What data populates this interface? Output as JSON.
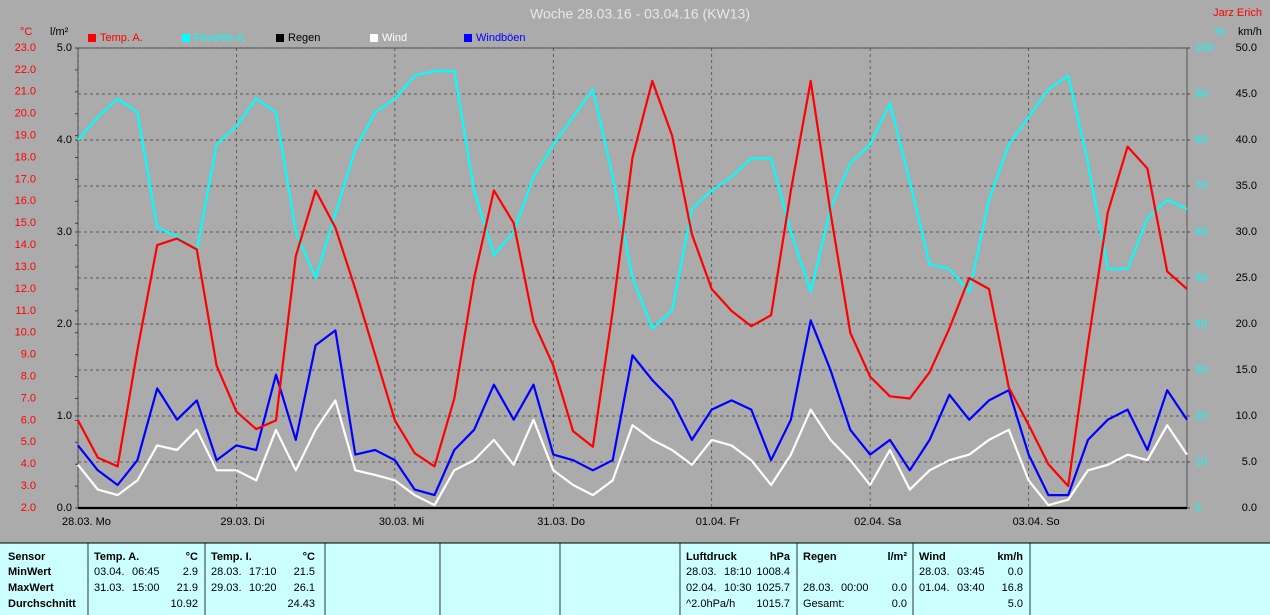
{
  "chart_data": {
    "type": "line",
    "title": "Woche 28.03.16 - 03.04.16 (KW13)",
    "author": "Jarz Erich",
    "ylabel": "°C",
    "y3label": "l/m²",
    "y4label": "%",
    "y2label": "km/h",
    "xlim": [
      0,
      7
    ],
    "xticks": [
      {
        "value": 0,
        "label": "28.03.  Mo"
      },
      {
        "value": 1,
        "label": "29.03.  Di"
      },
      {
        "value": 2,
        "label": "30.03.  Mi"
      },
      {
        "value": 3,
        "label": "31.03.  Do"
      },
      {
        "value": 4,
        "label": "01.04.  Fr"
      },
      {
        "value": 5,
        "label": "02.04.  Sa"
      },
      {
        "value": 6,
        "label": "03.04.  So"
      }
    ],
    "ylim": [
      2,
      23
    ],
    "yticks": [
      {
        "value": 2,
        "label": "2.0"
      },
      {
        "value": 3,
        "label": "3.0"
      },
      {
        "value": 4,
        "label": "4.0"
      },
      {
        "value": 5,
        "label": "5.0"
      },
      {
        "value": 6,
        "label": "6.0"
      },
      {
        "value": 7,
        "label": "7.0"
      },
      {
        "value": 8,
        "label": "8.0"
      },
      {
        "value": 9,
        "label": "9.0"
      },
      {
        "value": 10,
        "label": "10.0"
      },
      {
        "value": 11,
        "label": "11.0"
      },
      {
        "value": 12,
        "label": "12.0"
      },
      {
        "value": 13,
        "label": "13.0"
      },
      {
        "value": 14,
        "label": "14.0"
      },
      {
        "value": 15,
        "label": "15.0"
      },
      {
        "value": 16,
        "label": "16.0"
      },
      {
        "value": 17,
        "label": "17.0"
      },
      {
        "value": 18,
        "label": "18.0"
      },
      {
        "value": 19,
        "label": "19.0"
      },
      {
        "value": 20,
        "label": "20.0"
      },
      {
        "value": 21,
        "label": "21.0"
      },
      {
        "value": 22,
        "label": "22.0"
      },
      {
        "value": 23,
        "label": "23.0"
      }
    ],
    "y3lim": [
      0,
      5
    ],
    "y3ticks": [
      {
        "value": 0,
        "label": "0.0"
      },
      {
        "value": 1,
        "label": "1.0"
      },
      {
        "value": 2,
        "label": "2.0"
      },
      {
        "value": 3,
        "label": "3.0"
      },
      {
        "value": 4,
        "label": "4.0"
      },
      {
        "value": 5,
        "label": "5.0"
      }
    ],
    "y4lim": [
      0,
      100
    ],
    "y4ticks": [
      0,
      10,
      20,
      30,
      40,
      50,
      60,
      70,
      80,
      90,
      100
    ],
    "y2lim": [
      0,
      50
    ],
    "y2ticks": [
      {
        "value": 0,
        "label": "0.0"
      },
      {
        "value": 5,
        "label": "5.0"
      },
      {
        "value": 10,
        "label": "10.0"
      },
      {
        "value": 15,
        "label": "15.0"
      },
      {
        "value": 20,
        "label": "20.0"
      },
      {
        "value": 25,
        "label": "25.0"
      },
      {
        "value": 30,
        "label": "30.0"
      },
      {
        "value": 35,
        "label": "35.0"
      },
      {
        "value": 40,
        "label": "40.0"
      },
      {
        "value": 45,
        "label": "45.0"
      },
      {
        "value": 50,
        "label": "50.0"
      }
    ],
    "grid": true,
    "x": [
      0,
      0.125,
      0.25,
      0.375,
      0.5,
      0.625,
      0.75,
      0.875,
      1,
      1.125,
      1.25,
      1.375,
      1.5,
      1.625,
      1.75,
      1.875,
      2,
      2.125,
      2.25,
      2.375,
      2.5,
      2.625,
      2.75,
      2.875,
      3,
      3.125,
      3.25,
      3.375,
      3.5,
      3.625,
      3.75,
      3.875,
      4,
      4.125,
      4.25,
      4.375,
      4.5,
      4.625,
      4.75,
      4.875,
      5,
      5.125,
      5.25,
      5.375,
      5.5,
      5.625,
      5.75,
      5.875,
      6,
      6.125,
      6.25,
      6.375,
      6.5,
      6.625,
      6.75,
      6.875,
      7
    ],
    "series": [
      {
        "name": "Temp. A.",
        "color": "#ff0000",
        "axis": "y",
        "values": [
          6.0,
          4.3,
          3.9,
          9.2,
          14.0,
          14.3,
          13.8,
          8.5,
          6.4,
          5.6,
          6.0,
          13.5,
          16.5,
          14.8,
          12.0,
          9.0,
          6.0,
          4.5,
          3.9,
          7.0,
          12.5,
          16.5,
          15.0,
          10.5,
          8.5,
          5.5,
          4.8,
          11.0,
          18.0,
          21.5,
          19.0,
          14.5,
          12.0,
          11.0,
          10.3,
          10.8,
          16.5,
          21.5,
          15.5,
          10.0,
          8.0,
          7.1,
          7.0,
          8.2,
          10.2,
          12.5,
          12.0,
          7.5,
          5.8,
          4.0,
          3.0,
          9.5,
          15.5,
          18.5,
          17.5,
          12.8,
          12.0
        ]
      },
      {
        "name": "Feuchte A.",
        "color": "#00ffff",
        "axis": "y4",
        "values": [
          80,
          85,
          89,
          86,
          61,
          59,
          56,
          79,
          83,
          89,
          86,
          60,
          50,
          64,
          78,
          86,
          89,
          94,
          95,
          95,
          69,
          55,
          60,
          72,
          79,
          85,
          91,
          72,
          50,
          39,
          43,
          65,
          69,
          72,
          76,
          76,
          60,
          47,
          65,
          75,
          79,
          88,
          71,
          53,
          52,
          47,
          67,
          79,
          85,
          91,
          94,
          75,
          52,
          52,
          63,
          67,
          65
        ]
      },
      {
        "name": "Regen",
        "color": "#000000",
        "axis": "y3",
        "values": [
          0,
          0,
          0,
          0,
          0,
          0,
          0,
          0,
          0,
          0,
          0,
          0,
          0,
          0,
          0,
          0,
          0,
          0,
          0,
          0,
          0,
          0,
          0,
          0,
          0,
          0,
          0,
          0,
          0,
          0,
          0,
          0,
          0,
          0,
          0,
          0,
          0,
          0,
          0,
          0,
          0,
          0,
          0,
          0,
          0,
          0,
          0,
          0,
          0,
          0,
          0,
          0,
          0,
          0,
          0,
          0,
          0
        ]
      },
      {
        "name": "Wind",
        "color": "#ffffff",
        "axis": "y2",
        "values": [
          4.7,
          2.0,
          1.4,
          3.0,
          6.8,
          6.3,
          8.5,
          4.1,
          4.1,
          3.0,
          8.5,
          4.1,
          8.5,
          11.7,
          4.1,
          3.6,
          3.0,
          1.4,
          0.3,
          4.1,
          5.2,
          7.4,
          4.7,
          9.6,
          4.1,
          2.5,
          1.4,
          3.0,
          9.0,
          7.4,
          6.3,
          4.7,
          7.4,
          6.8,
          5.2,
          2.5,
          5.8,
          10.7,
          7.4,
          5.2,
          2.5,
          6.3,
          2.0,
          4.1,
          5.2,
          5.8,
          7.4,
          8.5,
          3.0,
          0.3,
          0.9,
          4.1,
          4.7,
          5.8,
          5.2,
          9.0,
          5.8
        ]
      },
      {
        "name": "Windböen",
        "color": "#0000ff",
        "axis": "y2",
        "values": [
          6.8,
          4.1,
          2.5,
          5.2,
          13.0,
          9.6,
          11.7,
          5.2,
          6.8,
          6.3,
          14.5,
          7.4,
          17.7,
          19.3,
          5.8,
          6.3,
          5.2,
          2.0,
          1.4,
          6.3,
          8.5,
          13.4,
          9.6,
          13.4,
          5.8,
          5.2,
          4.1,
          5.2,
          16.6,
          13.9,
          11.7,
          7.4,
          10.7,
          11.7,
          10.7,
          5.2,
          9.6,
          20.4,
          15.0,
          8.5,
          5.8,
          7.4,
          4.1,
          7.4,
          12.3,
          9.6,
          11.7,
          12.8,
          5.8,
          1.4,
          1.4,
          7.4,
          9.6,
          10.7,
          6.3,
          12.8,
          9.6
        ]
      }
    ]
  },
  "stats": {
    "row_labels": [
      "Sensor",
      "MinWert",
      "MaxWert",
      "Durchschnitt"
    ],
    "groups": [
      {
        "name": "Temp. A.",
        "unit": "°C",
        "min": [
          "03.04.",
          "06:45",
          "2.9"
        ],
        "max": [
          "31.03.",
          "15:00",
          "21.9"
        ],
        "avg": [
          "10.92"
        ]
      },
      {
        "name": "Temp. I.",
        "unit": "°C",
        "min": [
          "28.03.",
          "17:10",
          "21.5"
        ],
        "max": [
          "29.03.",
          "10:20",
          "26.1"
        ],
        "avg": [
          "24.43"
        ]
      },
      {
        "name": "Luftdruck",
        "unit": "hPa",
        "min": [
          "28.03.",
          "18:10",
          "1008.4"
        ],
        "max": [
          "02.04.",
          "10:30",
          "1025.7"
        ],
        "avg": [
          "^2.0hPa/h",
          "1015.7"
        ]
      },
      {
        "name": "Regen",
        "unit": "l/m²",
        "max": [
          "28.03.",
          "00:00",
          "0.0"
        ],
        "avg": [
          "Gesamt:",
          "0.0"
        ]
      },
      {
        "name": "Wind",
        "unit": "km/h",
        "min": [
          "28.03.",
          "03:45",
          "0.0"
        ],
        "max": [
          "01.04.",
          "03:40",
          "16.8"
        ],
        "avg": [
          "5.0"
        ]
      }
    ]
  }
}
